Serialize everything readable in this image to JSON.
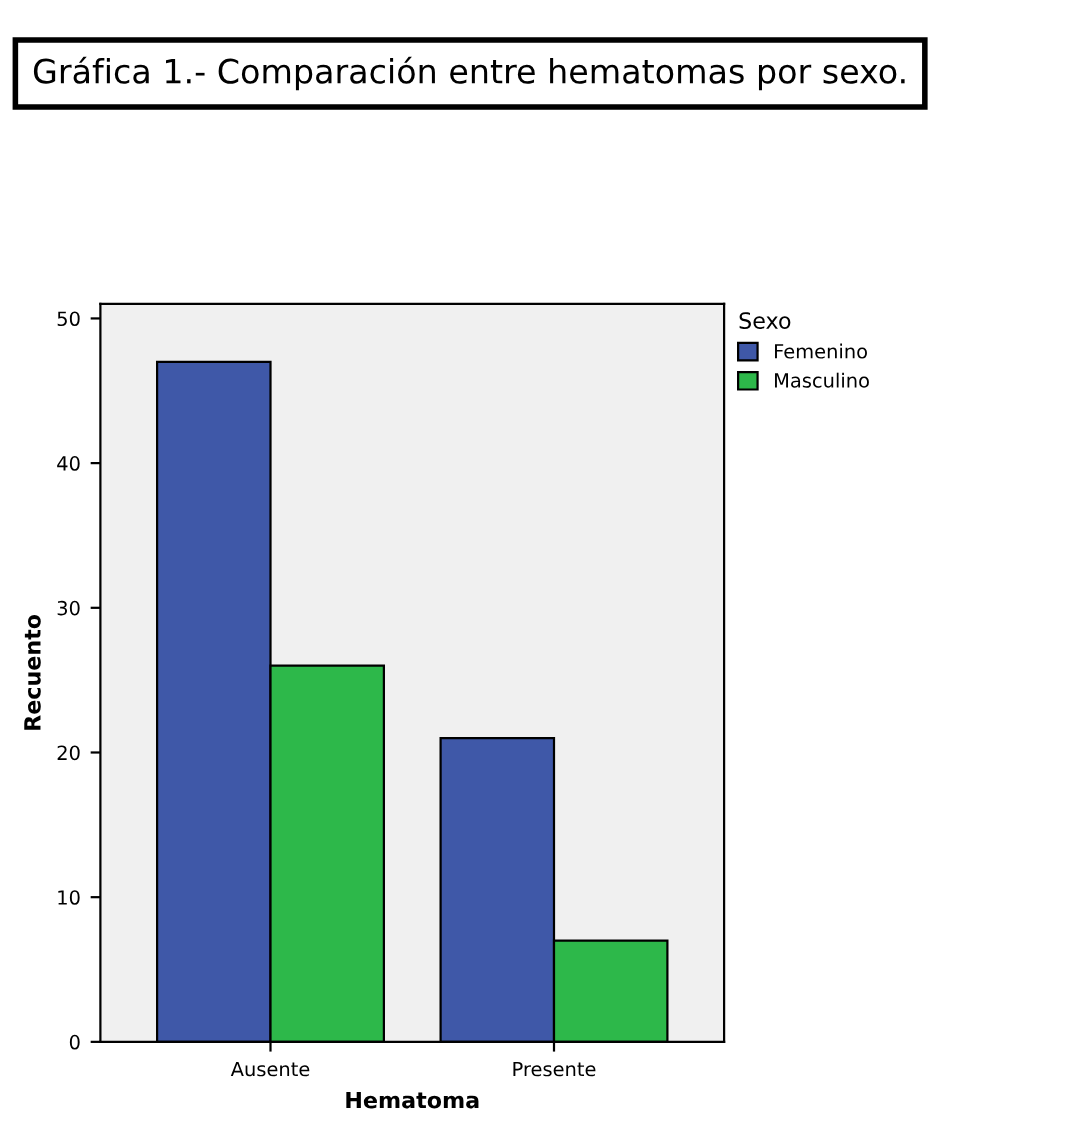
{
  "chart_data": {
    "type": "bar",
    "title": "Gráfica 1.- Comparación entre hematomas por sexo.",
    "xlabel": "Hematoma",
    "ylabel": "Recuento",
    "legend_title": "Sexo",
    "categories": [
      "Ausente",
      "Presente"
    ],
    "series": [
      {
        "name": "Femenino",
        "color": "#3f58a8",
        "values": [
          47,
          21
        ]
      },
      {
        "name": "Masculino",
        "color": "#2db84a",
        "values": [
          26,
          7
        ]
      }
    ],
    "ylim": [
      0,
      51
    ],
    "yticks": [
      0,
      10,
      20,
      30,
      40,
      50
    ],
    "grid": false,
    "legend": "top right"
  }
}
